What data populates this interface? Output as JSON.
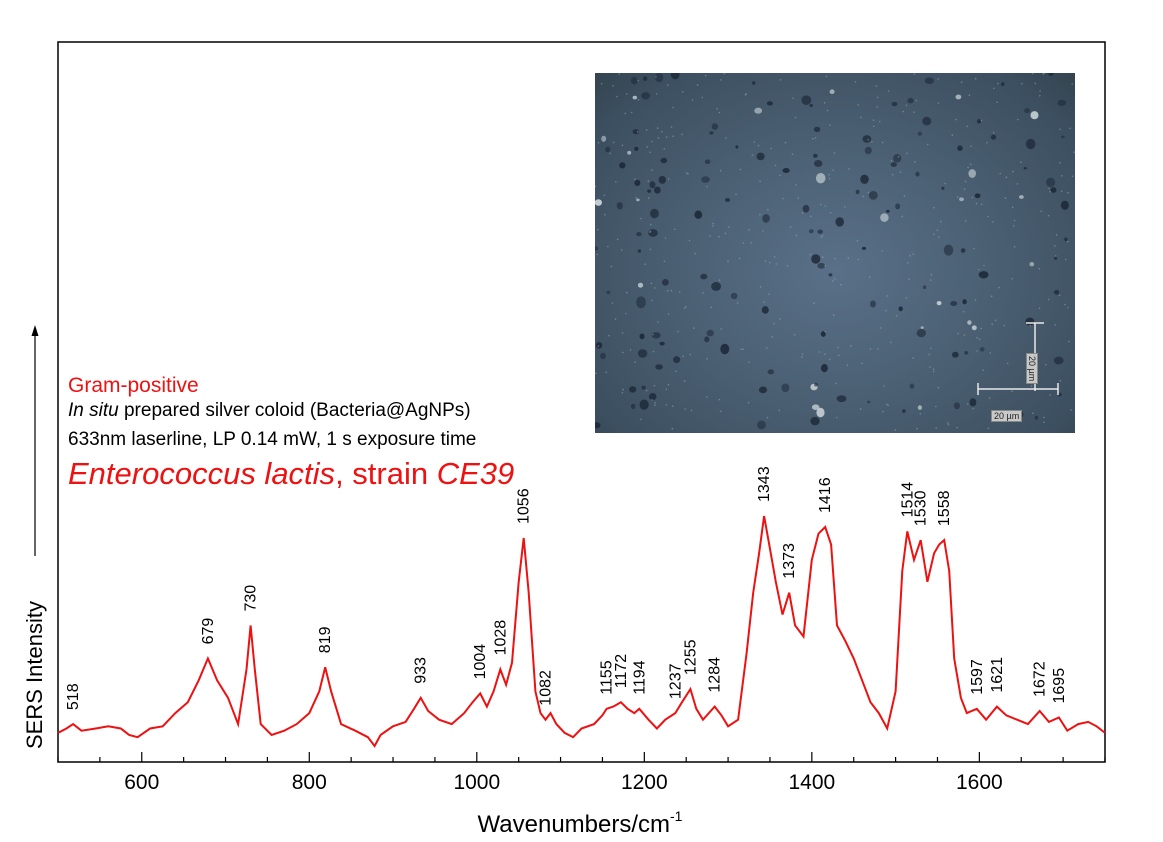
{
  "chart_data": {
    "type": "line",
    "title": "",
    "xlabel": "Wavenumbers/cm",
    "xlabel_superscript": "-1",
    "ylabel": "SERS Intensity",
    "xlim": [
      500,
      1750
    ],
    "xticks": [
      600,
      800,
      1000,
      1200,
      1400,
      1600
    ],
    "grid": false,
    "color": "#ee1111",
    "series": [
      {
        "x": [
          500,
          510,
          518,
          528,
          545,
          560,
          575,
          585,
          595,
          610,
          625,
          640,
          655,
          668,
          679,
          690,
          703,
          715,
          725,
          730,
          735,
          742,
          755,
          770,
          785,
          800,
          812,
          819,
          826,
          838,
          855,
          870,
          878,
          885,
          900,
          915,
          925,
          933,
          942,
          955,
          970,
          985,
          995,
          1004,
          1012,
          1020,
          1028,
          1035,
          1042,
          1050,
          1056,
          1062,
          1070,
          1076,
          1082,
          1088,
          1095,
          1105,
          1115,
          1125,
          1140,
          1150,
          1155,
          1163,
          1172,
          1180,
          1188,
          1194,
          1205,
          1215,
          1225,
          1237,
          1245,
          1255,
          1262,
          1270,
          1277,
          1284,
          1292,
          1300,
          1312,
          1322,
          1330,
          1337,
          1343,
          1350,
          1357,
          1365,
          1373,
          1380,
          1390,
          1400,
          1408,
          1416,
          1423,
          1430,
          1440,
          1450,
          1460,
          1470,
          1480,
          1490,
          1500,
          1508,
          1514,
          1522,
          1530,
          1538,
          1546,
          1552,
          1558,
          1564,
          1570,
          1578,
          1585,
          1597,
          1608,
          1621,
          1632,
          1645,
          1658,
          1672,
          1683,
          1695,
          1705,
          1718,
          1730,
          1740,
          1750
        ],
        "values": [
          0.06,
          0.08,
          0.1,
          0.07,
          0.08,
          0.09,
          0.08,
          0.05,
          0.04,
          0.08,
          0.09,
          0.15,
          0.2,
          0.3,
          0.4,
          0.3,
          0.22,
          0.1,
          0.35,
          0.55,
          0.35,
          0.1,
          0.05,
          0.07,
          0.1,
          0.15,
          0.25,
          0.36,
          0.25,
          0.1,
          0.07,
          0.04,
          0.0,
          0.05,
          0.09,
          0.11,
          0.17,
          0.22,
          0.16,
          0.12,
          0.1,
          0.15,
          0.2,
          0.24,
          0.18,
          0.25,
          0.35,
          0.28,
          0.38,
          0.75,
          0.95,
          0.7,
          0.25,
          0.15,
          0.12,
          0.15,
          0.1,
          0.06,
          0.04,
          0.08,
          0.1,
          0.14,
          0.17,
          0.18,
          0.2,
          0.17,
          0.15,
          0.17,
          0.12,
          0.08,
          0.12,
          0.15,
          0.2,
          0.26,
          0.17,
          0.12,
          0.15,
          0.18,
          0.14,
          0.09,
          0.12,
          0.42,
          0.7,
          0.88,
          1.05,
          0.9,
          0.75,
          0.6,
          0.7,
          0.55,
          0.5,
          0.85,
          0.97,
          1.0,
          0.92,
          0.55,
          0.48,
          0.4,
          0.3,
          0.2,
          0.15,
          0.08,
          0.25,
          0.8,
          0.98,
          0.85,
          0.94,
          0.75,
          0.88,
          0.92,
          0.94,
          0.8,
          0.4,
          0.22,
          0.15,
          0.17,
          0.12,
          0.18,
          0.14,
          0.12,
          0.1,
          0.16,
          0.11,
          0.13,
          0.07,
          0.1,
          0.11,
          0.09,
          0.06
        ]
      }
    ],
    "peak_labels": [
      "518",
      "679",
      "730",
      "819",
      "933",
      "1004",
      "1028",
      "1056",
      "1082",
      "1155",
      "1172",
      "1194",
      "1237",
      "1255",
      "1284",
      "1343",
      "1373",
      "1416",
      "1514",
      "1530",
      "1558",
      "1597",
      "1621",
      "1672",
      "1695"
    ],
    "peak_positions": [
      518,
      679,
      730,
      819,
      933,
      1004,
      1028,
      1056,
      1082,
      1155,
      1172,
      1194,
      1237,
      1255,
      1284,
      1343,
      1373,
      1416,
      1514,
      1530,
      1558,
      1597,
      1621,
      1672,
      1695
    ]
  },
  "annotations": {
    "gram": "Gram-positive",
    "coloid_italic": "In situ",
    "coloid_rest": " prepared silver coloid (Bacteria@AgNPs)",
    "laser": "633nm laserline, LP 0.14 mW, 1 s exposure time",
    "species_italic1": "Enterococcus lactis",
    "species_mid": ", strain ",
    "species_italic2": "CE39",
    "red": "#ee1111"
  },
  "inset": {
    "scale_label_h": "20 µm",
    "scale_label_v": "20 µm"
  }
}
